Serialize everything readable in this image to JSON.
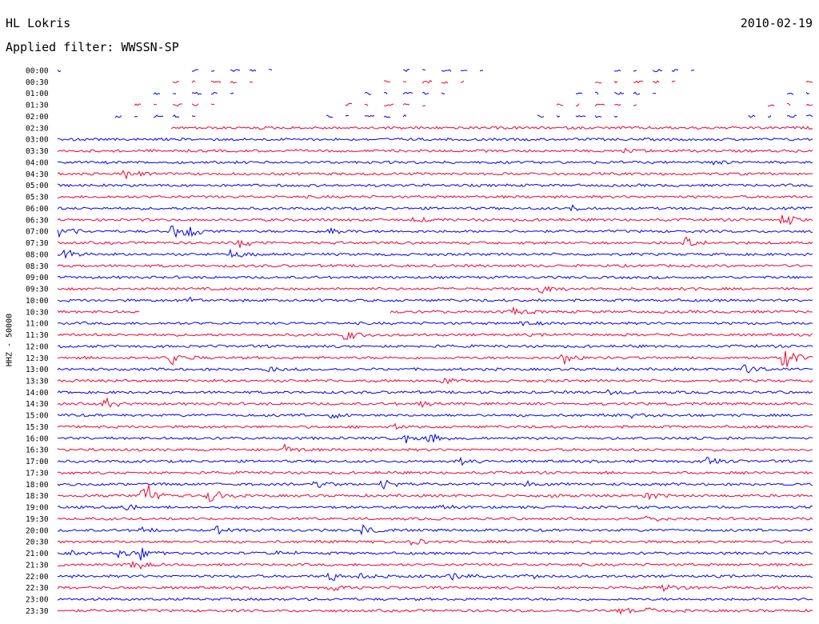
{
  "header": {
    "station": "HL Lokris",
    "date": "2010-02-19",
    "filter": "Applied filter: WWSSN-SP",
    "channel_label": "HHZ - 50000"
  },
  "colors": {
    "trace_even": "#0000ee",
    "trace_odd": "#ee0033",
    "background": "#ffffff",
    "text": "#000000"
  },
  "chart_data": {
    "type": "line",
    "description_type": "helicorder",
    "rows": [
      {
        "label": "00:00",
        "color": "blue",
        "gaps": true,
        "events": [
          [
            0.6,
            0.9
          ]
        ]
      },
      {
        "label": "00:30",
        "color": "red",
        "gaps": true,
        "events": []
      },
      {
        "label": "01:00",
        "color": "blue",
        "gaps": true,
        "events": []
      },
      {
        "label": "01:30",
        "color": "red",
        "gaps": true,
        "events": [
          [
            0.06,
            1.0
          ]
        ]
      },
      {
        "label": "02:00",
        "color": "blue",
        "gaps": true,
        "events": []
      },
      {
        "label": "02:30",
        "color": "red",
        "gaps": false,
        "events": [],
        "start": 0.15
      },
      {
        "label": "03:00",
        "color": "blue",
        "gaps": false,
        "events": []
      },
      {
        "label": "03:30",
        "color": "red",
        "gaps": false,
        "events": [
          [
            0.75,
            0.3
          ]
        ]
      },
      {
        "label": "04:00",
        "color": "blue",
        "gaps": false,
        "events": [
          [
            0.87,
            0.3
          ]
        ]
      },
      {
        "label": "04:30",
        "color": "red",
        "gaps": false,
        "events": [
          [
            0.09,
            0.8
          ]
        ]
      },
      {
        "label": "05:00",
        "color": "blue",
        "gaps": false,
        "events": []
      },
      {
        "label": "05:30",
        "color": "red",
        "gaps": false,
        "events": []
      },
      {
        "label": "06:00",
        "color": "blue",
        "gaps": false,
        "events": [
          [
            0.68,
            0.3
          ]
        ]
      },
      {
        "label": "06:30",
        "color": "red",
        "gaps": false,
        "events": [
          [
            0.47,
            0.3
          ],
          [
            0.96,
            0.9
          ]
        ]
      },
      {
        "label": "07:00",
        "color": "blue",
        "gaps": false,
        "events": [
          [
            0.0,
            1.2
          ],
          [
            0.15,
            1.0
          ],
          [
            0.17,
            0.9
          ],
          [
            0.36,
            0.5
          ]
        ]
      },
      {
        "label": "07:30",
        "color": "red",
        "gaps": false,
        "events": [
          [
            0.24,
            0.8
          ],
          [
            0.83,
            0.9
          ]
        ]
      },
      {
        "label": "08:00",
        "color": "blue",
        "gaps": false,
        "events": [
          [
            0.01,
            0.6
          ],
          [
            0.23,
            0.6
          ]
        ]
      },
      {
        "label": "08:30",
        "color": "red",
        "gaps": false,
        "events": []
      },
      {
        "label": "09:00",
        "color": "blue",
        "gaps": false,
        "events": []
      },
      {
        "label": "09:30",
        "color": "red",
        "gaps": false,
        "events": [
          [
            0.64,
            0.9
          ],
          [
            0.82,
            0.3
          ]
        ]
      },
      {
        "label": "10:00",
        "color": "blue",
        "gaps": false,
        "events": [
          [
            0.17,
            0.6
          ]
        ]
      },
      {
        "label": "10:30",
        "color": "red",
        "gaps": false,
        "events": [
          [
            0.6,
            0.6
          ]
        ],
        "hole": [
          0.11,
          0.44
        ]
      },
      {
        "label": "11:00",
        "color": "blue",
        "gaps": false,
        "events": [
          [
            0.61,
            0.4
          ]
        ]
      },
      {
        "label": "11:30",
        "color": "red",
        "gaps": false,
        "events": [
          [
            0.38,
            0.8
          ]
        ]
      },
      {
        "label": "12:00",
        "color": "blue",
        "gaps": false,
        "events": []
      },
      {
        "label": "12:30",
        "color": "red",
        "gaps": false,
        "events": [
          [
            0.15,
            0.8
          ],
          [
            0.67,
            0.9
          ],
          [
            0.96,
            1.6
          ]
        ]
      },
      {
        "label": "13:00",
        "color": "blue",
        "gaps": false,
        "events": [
          [
            0.28,
            0.3
          ],
          [
            0.91,
            0.8
          ]
        ]
      },
      {
        "label": "13:30",
        "color": "red",
        "gaps": false,
        "events": [
          [
            0.51,
            0.4
          ]
        ]
      },
      {
        "label": "14:00",
        "color": "blue",
        "gaps": false,
        "events": [
          [
            0.73,
            0.4
          ]
        ]
      },
      {
        "label": "14:30",
        "color": "red",
        "gaps": false,
        "events": [
          [
            0.06,
            0.8
          ],
          [
            0.48,
            0.4
          ]
        ]
      },
      {
        "label": "15:00",
        "color": "blue",
        "gaps": false,
        "events": [
          [
            0.36,
            0.4
          ],
          [
            0.76,
            0.3
          ]
        ]
      },
      {
        "label": "15:30",
        "color": "red",
        "gaps": false,
        "events": [
          [
            0.44,
            0.4
          ]
        ]
      },
      {
        "label": "16:00",
        "color": "blue",
        "gaps": false,
        "events": [
          [
            0.46,
            0.5
          ],
          [
            0.49,
            0.6
          ]
        ]
      },
      {
        "label": "16:30",
        "color": "red",
        "gaps": false,
        "events": [
          [
            0.3,
            0.7
          ]
        ]
      },
      {
        "label": "17:00",
        "color": "blue",
        "gaps": false,
        "events": [
          [
            0.53,
            0.6
          ],
          [
            0.86,
            0.6
          ]
        ]
      },
      {
        "label": "17:30",
        "color": "red",
        "gaps": false,
        "events": []
      },
      {
        "label": "18:00",
        "color": "blue",
        "gaps": false,
        "events": [
          [
            0.34,
            0.6
          ],
          [
            0.43,
            0.7
          ],
          [
            0.62,
            0.4
          ]
        ]
      },
      {
        "label": "18:30",
        "color": "red",
        "gaps": false,
        "events": [
          [
            0.11,
            2.6
          ],
          [
            0.2,
            1.0
          ],
          [
            0.65,
            0.4
          ],
          [
            0.78,
            0.6
          ]
        ]
      },
      {
        "label": "19:00",
        "color": "blue",
        "gaps": false,
        "events": [
          [
            0.09,
            0.5
          ],
          [
            0.5,
            0.5
          ]
        ]
      },
      {
        "label": "19:30",
        "color": "red",
        "gaps": false,
        "events": [
          [
            0.78,
            0.5
          ]
        ]
      },
      {
        "label": "20:00",
        "color": "blue",
        "gaps": false,
        "events": [
          [
            0.11,
            0.4
          ],
          [
            0.21,
            0.4
          ],
          [
            0.4,
            0.7
          ]
        ]
      },
      {
        "label": "20:30",
        "color": "red",
        "gaps": false,
        "events": [
          [
            0.47,
            0.5
          ]
        ]
      },
      {
        "label": "21:00",
        "color": "blue",
        "gaps": false,
        "events": [
          [
            0.02,
            0.4
          ],
          [
            0.08,
            0.4
          ],
          [
            0.11,
            0.7
          ],
          [
            0.29,
            0.4
          ]
        ]
      },
      {
        "label": "21:30",
        "color": "red",
        "gaps": false,
        "events": [
          [
            0.1,
            0.7
          ]
        ]
      },
      {
        "label": "22:00",
        "color": "blue",
        "gaps": false,
        "events": [
          [
            0.36,
            0.7
          ],
          [
            0.4,
            0.5
          ],
          [
            0.52,
            0.6
          ],
          [
            0.62,
            0.3
          ]
        ]
      },
      {
        "label": "22:30",
        "color": "red",
        "gaps": false,
        "events": [
          [
            0.36,
            0.6
          ],
          [
            0.8,
            0.7
          ]
        ]
      },
      {
        "label": "23:00",
        "color": "blue",
        "gaps": false,
        "events": []
      },
      {
        "label": "23:30",
        "color": "red",
        "gaps": false,
        "events": [
          [
            0.74,
            0.5
          ],
          [
            0.78,
            0.6
          ]
        ]
      }
    ]
  }
}
